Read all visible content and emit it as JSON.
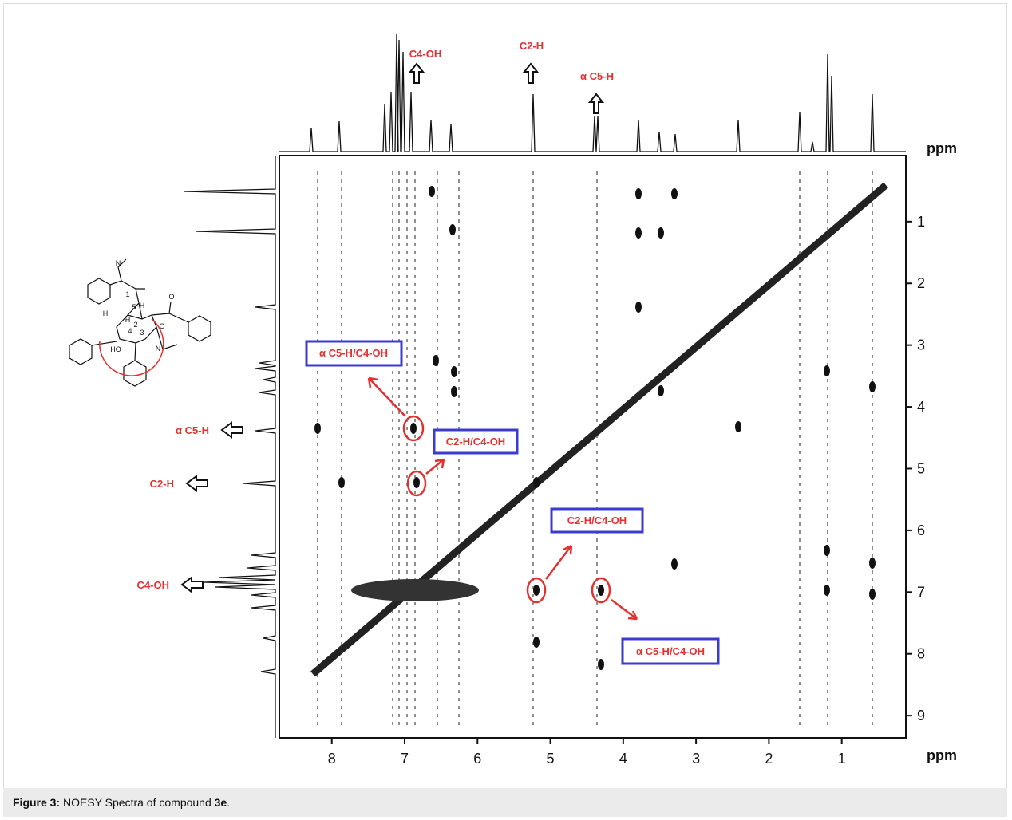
{
  "figure": {
    "x_axis": {
      "unit": "ppm",
      "xlim": [
        8.72,
        0.12
      ],
      "ticks": [
        8,
        7,
        6,
        5,
        4,
        3,
        2,
        1
      ]
    },
    "y_axis": {
      "unit": "ppm",
      "ylim": [
        -0.07,
        9.36
      ],
      "ticks": [
        1,
        2,
        3,
        4,
        5,
        6,
        7,
        8,
        9
      ]
    },
    "top_labels": [
      "C4-OH",
      "C2-H",
      "α C5-H"
    ],
    "left_labels": [
      "α C5-H",
      "C2-H",
      "C4-OH"
    ],
    "boxes": [
      "α C5-H/C4-OH",
      "C2-H/C4-OH",
      "C2-H/C4-OH",
      "α C5-H/C4-OH"
    ],
    "structure": {
      "atoms": [
        "N",
        "O",
        "O",
        "N",
        "1",
        "2",
        "3",
        "4",
        "5",
        "H",
        "H",
        "H",
        "HO"
      ]
    }
  },
  "caption": {
    "label": "Figure 3:",
    "text": "NOESY Spectra of compound",
    "compound": "3e",
    "end": "."
  }
}
